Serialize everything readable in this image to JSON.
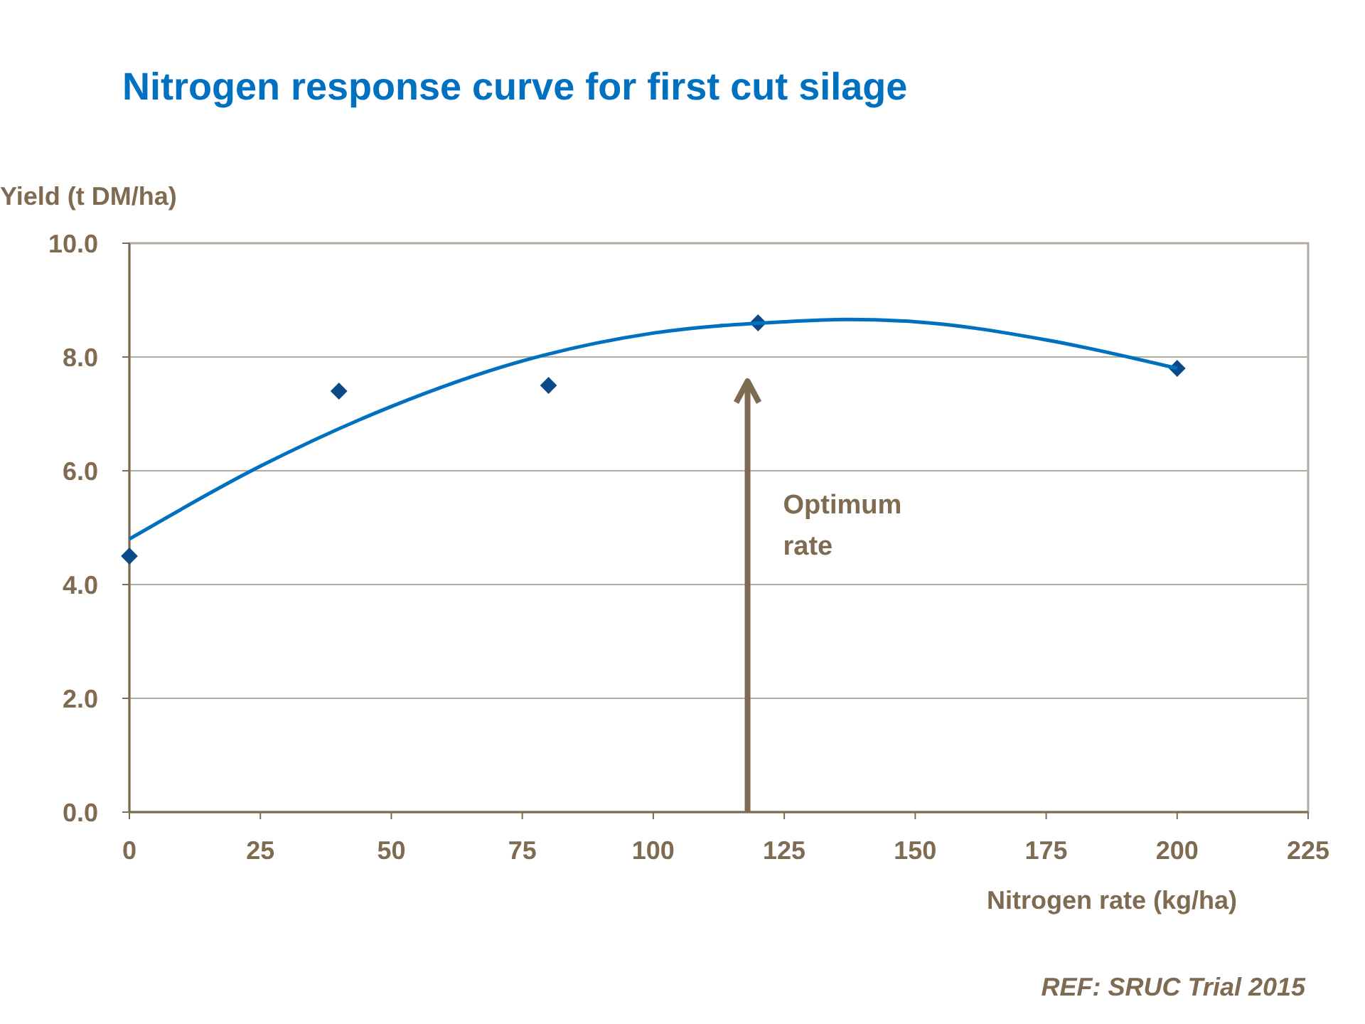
{
  "chart_data": {
    "type": "scatter",
    "title": "Nitrogen response curve for first cut silage",
    "xlabel": "Nitrogen rate (kg/ha)",
    "ylabel": "Yield (t DM/ha)",
    "x": [
      0,
      40,
      80,
      120,
      200
    ],
    "series": [
      {
        "type": "scatter",
        "color": "#0b4a86",
        "marker": "diamond",
        "values": [
          4.5,
          7.4,
          7.5,
          8.6,
          7.8
        ]
      },
      {
        "type": "line",
        "color": "#0070c0",
        "marker": "none",
        "line_style": "solid",
        "x": [
          0,
          25,
          50,
          75,
          100,
          125,
          137,
          150,
          175,
          200
        ],
        "values": [
          4.8,
          6.08,
          7.13,
          7.93,
          8.42,
          8.62,
          8.66,
          8.62,
          8.3,
          7.8
        ]
      }
    ],
    "xlim": [
      0,
      225
    ],
    "xticks": [
      0,
      25,
      50,
      75,
      100,
      125,
      150,
      175,
      200,
      225
    ],
    "ylim": [
      0,
      10
    ],
    "yticks": [
      {
        "value": 0,
        "label": "0.0"
      },
      {
        "value": 2,
        "label": "2.0"
      },
      {
        "value": 4,
        "label": "4.0"
      },
      {
        "value": 6,
        "label": "6.0"
      },
      {
        "value": 8,
        "label": "8.0"
      },
      {
        "value": 10,
        "label": "10.0"
      }
    ],
    "grid": "y",
    "ref_lines": [
      {
        "axis": "x",
        "value": 118,
        "label": "Optimum rate",
        "color": "#7f6a52"
      }
    ],
    "annotations": [
      "REF: SRUC Trial 2015"
    ]
  }
}
